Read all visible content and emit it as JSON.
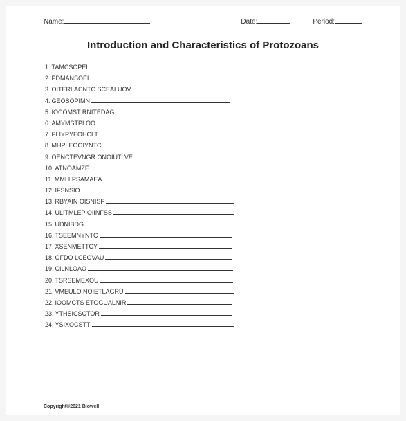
{
  "header": {
    "name_label": "Name:",
    "date_label": "Date:",
    "period_label": "Period:"
  },
  "title": "Introduction and Characteristics of Protozoans",
  "items": [
    {
      "num": "1.",
      "word": "TAMCSOPEL",
      "line_width": 205
    },
    {
      "num": "2.",
      "word": "PDMANSOEL",
      "line_width": 200
    },
    {
      "num": "3.",
      "word": "OITERLACNTC SCEALUOV",
      "line_width": 142
    },
    {
      "num": "4.",
      "word": "GEOSOPIMN",
      "line_width": 200
    },
    {
      "num": "5.",
      "word": "IOCOMST RNITEDAG",
      "line_width": 168
    },
    {
      "num": "6.",
      "word": "AMYMSTPLOO",
      "line_width": 195
    },
    {
      "num": "7.",
      "word": "PLIYPYEOHCLT",
      "line_width": 190
    },
    {
      "num": "8.",
      "word": "MHPLEOOIYNTC",
      "line_width": 188
    },
    {
      "num": "9.",
      "word": "OENCTEVNGR ONOIUTLVE",
      "line_width": 138
    },
    {
      "num": "10.",
      "word": "ATNOAMZE",
      "line_width": 202
    },
    {
      "num": "11.",
      "word": "MMLLPSAMAEA",
      "line_width": 186
    },
    {
      "num": "12.",
      "word": "IFSNSIO",
      "line_width": 218
    },
    {
      "num": "13.",
      "word": "RBYAIN OISNISF",
      "line_width": 185
    },
    {
      "num": "14.",
      "word": "ULITMLEP OIINFSS",
      "line_width": 174
    },
    {
      "num": "15.",
      "word": "UDNIBDG",
      "line_width": 212
    },
    {
      "num": "16.",
      "word": "TSEEMNYNTC",
      "line_width": 192
    },
    {
      "num": "17.",
      "word": "XSENMETTCY",
      "line_width": 193
    },
    {
      "num": "18.",
      "word": "OFDO LCEOVAU",
      "line_width": 184
    },
    {
      "num": "19.",
      "word": "CILNLOAO",
      "line_width": 210
    },
    {
      "num": "20.",
      "word": "TSRSEMEXOU",
      "line_width": 192
    },
    {
      "num": "21.",
      "word": "VMEULO NOIETLAGRU",
      "line_width": 158
    },
    {
      "num": "22.",
      "word": "IOOMCTS ETOGUALNIR",
      "line_width": 152
    },
    {
      "num": "23.",
      "word": "YTHSICSCTOR",
      "line_width": 190
    },
    {
      "num": "24.",
      "word": "YSIXOCSTT",
      "line_width": 205
    }
  ],
  "copyright": "Copyright©2021 Biowell"
}
